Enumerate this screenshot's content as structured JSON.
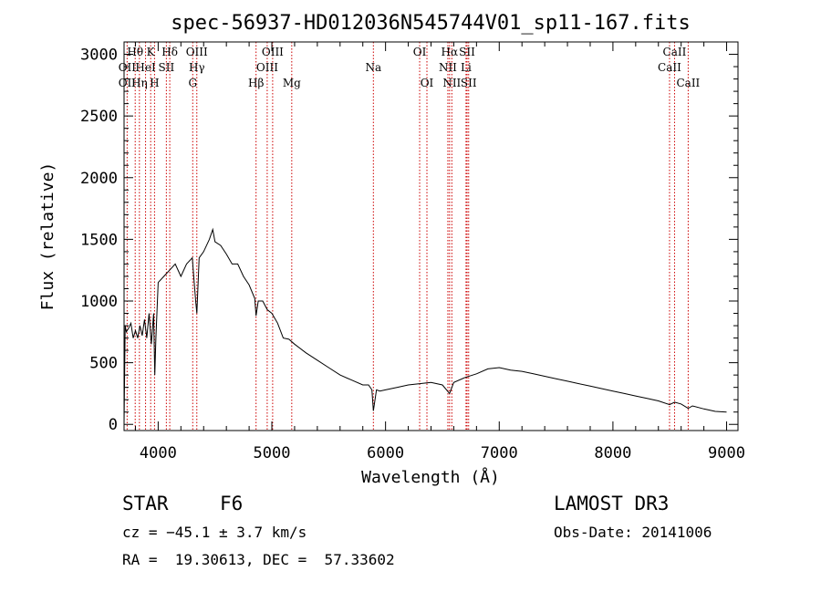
{
  "chart_data": {
    "type": "line",
    "title": "spec-56937-HD012036N545744V01_sp11-167.fits",
    "xlabel": "Wavelength (Å)",
    "ylabel": "Flux (relative)",
    "xlim": [
      3700,
      9100
    ],
    "ylim": [
      -50,
      3100
    ],
    "x_ticks": [
      4000,
      5000,
      6000,
      7000,
      8000,
      9000
    ],
    "y_ticks": [
      0,
      500,
      1000,
      1500,
      2000,
      2500,
      3000
    ],
    "grid": false,
    "series": [
      {
        "name": "flux",
        "x": [
          3700,
          3710,
          3720,
          3740,
          3760,
          3780,
          3800,
          3820,
          3840,
          3860,
          3880,
          3900,
          3920,
          3940,
          3960,
          3970,
          3980,
          4000,
          4050,
          4100,
          4150,
          4200,
          4250,
          4300,
          4330,
          4340,
          4360,
          4400,
          4450,
          4480,
          4500,
          4550,
          4600,
          4650,
          4700,
          4750,
          4800,
          4850,
          4861,
          4880,
          4920,
          4960,
          5000,
          5050,
          5100,
          5150,
          5200,
          5300,
          5400,
          5500,
          5600,
          5700,
          5800,
          5850,
          5880,
          5893,
          5920,
          5950,
          6000,
          6100,
          6200,
          6300,
          6400,
          6500,
          6563,
          6600,
          6700,
          6800,
          6900,
          7000,
          7100,
          7200,
          7300,
          7400,
          7500,
          7600,
          7700,
          7800,
          7900,
          8000,
          8100,
          8200,
          8300,
          8400,
          8498,
          8542,
          8600,
          8662,
          8700,
          8800,
          8900,
          9000
        ],
        "y": [
          0,
          800,
          750,
          780,
          820,
          700,
          760,
          700,
          800,
          720,
          850,
          700,
          900,
          650,
          900,
          400,
          700,
          1150,
          1200,
          1250,
          1300,
          1200,
          1300,
          1350,
          1000,
          900,
          1350,
          1400,
          1500,
          1580,
          1480,
          1450,
          1380,
          1300,
          1300,
          1200,
          1130,
          1020,
          880,
          1000,
          1000,
          930,
          900,
          820,
          700,
          690,
          650,
          580,
          520,
          460,
          400,
          360,
          320,
          320,
          280,
          110,
          280,
          270,
          280,
          300,
          320,
          330,
          340,
          320,
          250,
          340,
          380,
          410,
          450,
          460,
          440,
          430,
          410,
          390,
          370,
          350,
          330,
          310,
          290,
          270,
          250,
          230,
          210,
          190,
          160,
          180,
          165,
          130,
          150,
          125,
          105,
          100
        ]
      }
    ],
    "line_markers": [
      {
        "label": "Hθ",
        "x": 3798,
        "row": 1
      },
      {
        "label": "K",
        "x": 3934,
        "row": 1
      },
      {
        "label": "Hδ",
        "x": 4102,
        "row": 1
      },
      {
        "label": "OIII",
        "x": 4340,
        "row": 1
      },
      {
        "label": "OIII",
        "x": 5007,
        "row": 1
      },
      {
        "label": "OI",
        "x": 6300,
        "row": 1
      },
      {
        "label": "Hα",
        "x": 6563,
        "row": 1
      },
      {
        "label": "SII",
        "x": 6717,
        "row": 1
      },
      {
        "label": "CaII",
        "x": 8542,
        "row": 1
      },
      {
        "label": "OII",
        "x": 3727,
        "row": 2
      },
      {
        "label": "HeI",
        "x": 3889,
        "row": 2
      },
      {
        "label": "SII",
        "x": 4072,
        "row": 2
      },
      {
        "label": "Hγ",
        "x": 4340,
        "row": 2
      },
      {
        "label": "OIII",
        "x": 4959,
        "row": 2
      },
      {
        "label": "Na",
        "x": 5893,
        "row": 2
      },
      {
        "label": "NII",
        "x": 6548,
        "row": 2
      },
      {
        "label": "Li",
        "x": 6708,
        "row": 2
      },
      {
        "label": "CaII",
        "x": 8498,
        "row": 2
      },
      {
        "label": "OII",
        "x": 3727,
        "row": 3
      },
      {
        "label": "Hη",
        "x": 3835,
        "row": 3
      },
      {
        "label": "H",
        "x": 3968,
        "row": 3
      },
      {
        "label": "G",
        "x": 4304,
        "row": 3
      },
      {
        "label": "Hβ",
        "x": 4861,
        "row": 3
      },
      {
        "label": "Mg",
        "x": 5175,
        "row": 3
      },
      {
        "label": "OI",
        "x": 6364,
        "row": 3
      },
      {
        "label": "NII",
        "x": 6583,
        "row": 3
      },
      {
        "label": "SII",
        "x": 6731,
        "row": 3
      },
      {
        "label": "CaII",
        "x": 8662,
        "row": 3
      }
    ],
    "marker_color": "#cc0000"
  },
  "info": {
    "class_label": "STAR",
    "subclass": "F6",
    "survey": "LAMOST DR3",
    "redshift": "cz = −45.1 ± 3.7 km/s",
    "obs_date": "Obs-Date: 20141006",
    "coords": "RA =  19.30613, DEC =  57.33602"
  }
}
